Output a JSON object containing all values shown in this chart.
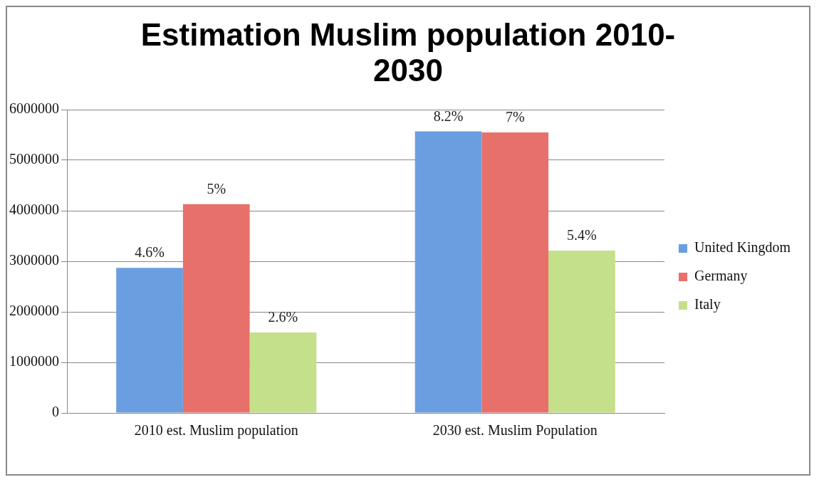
{
  "chart_data": {
    "type": "bar",
    "title": "Estimation Muslim population 2010-2030",
    "categories": [
      "2010 est. Muslim population",
      "2030 est. Muslim Population"
    ],
    "series": [
      {
        "name": "United Kingdom",
        "color": "#6a9ee0",
        "values": [
          2870000,
          5570000
        ]
      },
      {
        "name": "Germany",
        "color": "#e8706a",
        "values": [
          4130000,
          5550000
        ]
      },
      {
        "name": "Italy",
        "color": "#c4e08a",
        "values": [
          1590000,
          3210000
        ]
      }
    ],
    "annotations": [
      "4.6%",
      "8.2%",
      "5%",
      "7%",
      "2.6%",
      "5.4%"
    ],
    "ylim": [
      0,
      6000000
    ],
    "yticks": [
      0,
      1000000,
      2000000,
      3000000,
      4000000,
      5000000,
      6000000
    ],
    "grid": "y",
    "legend": "right"
  }
}
